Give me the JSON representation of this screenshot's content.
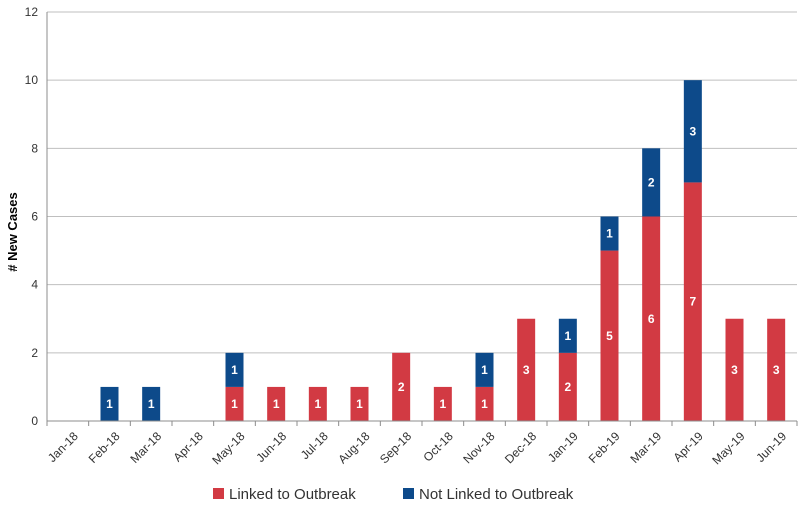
{
  "chart_data": {
    "type": "bar",
    "stacked": true,
    "categories": [
      "Jan-18",
      "Feb-18",
      "Mar-18",
      "Apr-18",
      "May-18",
      "Jun-18",
      "Jul-18",
      "Aug-18",
      "Sep-18",
      "Oct-18",
      "Nov-18",
      "Dec-18",
      "Jan-19",
      "Feb-19",
      "Mar-19",
      "Apr-19",
      "May-19",
      "Jun-19"
    ],
    "series": [
      {
        "name": "Linked to Outbreak",
        "color": "#D23A43",
        "values": [
          0,
          0,
          0,
          0,
          1,
          1,
          1,
          1,
          2,
          1,
          1,
          3,
          2,
          5,
          6,
          7,
          3,
          3
        ]
      },
      {
        "name": "Not Linked to Outbreak",
        "color": "#0D4A8A",
        "values": [
          0,
          1,
          1,
          0,
          1,
          0,
          0,
          0,
          0,
          0,
          1,
          0,
          1,
          1,
          2,
          3,
          0,
          0
        ]
      }
    ],
    "ylabel": "# New Cases",
    "xlabel": "",
    "ylim": [
      0,
      12
    ],
    "yticks": [
      "0",
      "2",
      "4",
      "6",
      "8",
      "10",
      "12"
    ],
    "grid": true,
    "legend_position": "bottom"
  }
}
